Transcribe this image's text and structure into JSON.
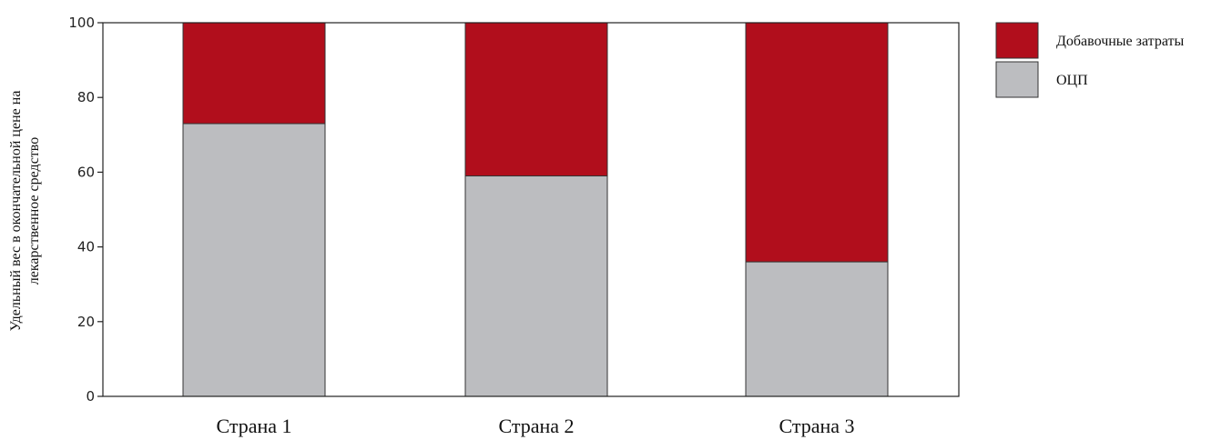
{
  "chart_data": {
    "type": "bar",
    "stacked": true,
    "categories": [
      "Страна 1",
      "Страна 2",
      "Страна 3"
    ],
    "series": [
      {
        "name": "ОЦП",
        "color": "#bcbdc0",
        "values": [
          73,
          59,
          36
        ]
      },
      {
        "name": "Добавочные затраты",
        "color": "#b10e1c",
        "values": [
          27,
          41,
          64
        ]
      }
    ],
    "ylabel_lines": [
      "Удельный вес в окончательной цене на",
      "лекарственное средство"
    ],
    "xlabel": "",
    "ylim": [
      0,
      100
    ],
    "yticks": [
      0,
      20,
      40,
      60,
      80,
      100
    ],
    "ytick_labels": [
      "0",
      "20",
      "40",
      "60",
      "80",
      "100"
    ],
    "grid": false,
    "legend_position": "top-right",
    "legend_order": [
      "Добавочные затраты",
      "ОЦП"
    ]
  }
}
